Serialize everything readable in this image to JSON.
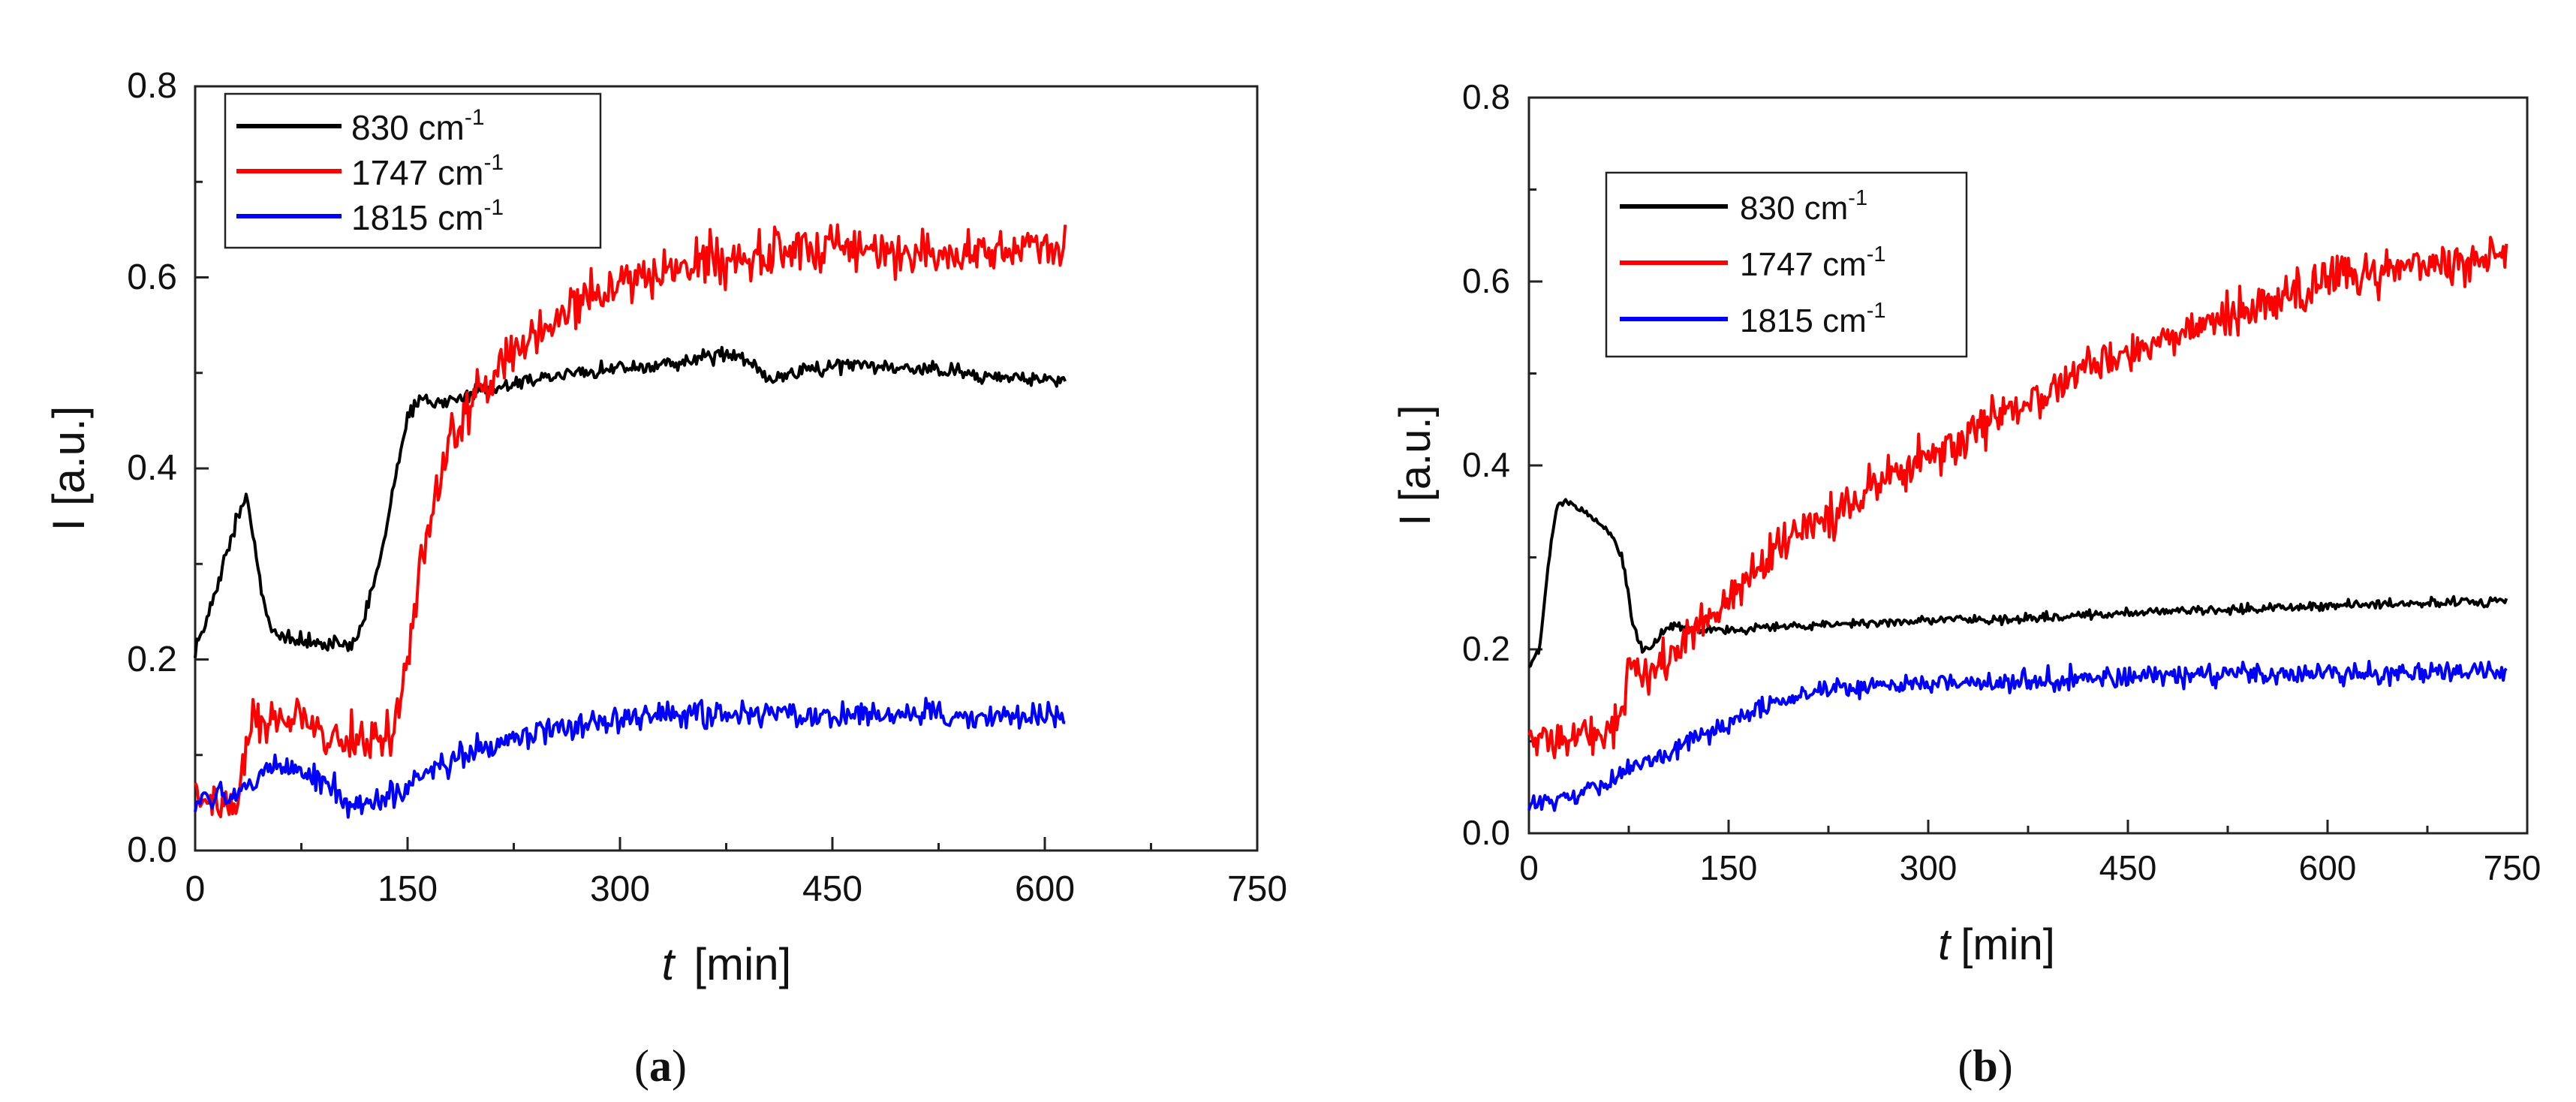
{
  "chart_data": [
    {
      "type": "line",
      "panel_label": {
        "open": "(",
        "letter": "a",
        "close": ")"
      },
      "xlabel": {
        "symbol": "t",
        "unit": "[min]"
      },
      "ylabel": "I [a.u.]",
      "xlim": [
        0,
        750
      ],
      "ylim": [
        0,
        0.8
      ],
      "xticks": [
        0,
        150,
        300,
        450,
        600,
        750
      ],
      "xtick_labels": [
        "0",
        "150",
        "300",
        "450",
        "600",
        "750"
      ],
      "yticks": [
        0.0,
        0.2,
        0.4,
        0.6,
        0.8
      ],
      "ytick_labels": [
        "0.0",
        "0.2",
        "0.4",
        "0.6",
        "0.8"
      ],
      "legend_position": "top-left",
      "series": [
        {
          "name": "830 cm",
          "superscript": "-1",
          "color": "#000000",
          "noise": 0.005,
          "points": [
            [
              0,
              0.21
            ],
            [
              10,
              0.25
            ],
            [
              20,
              0.3
            ],
            [
              30,
              0.35
            ],
            [
              35,
              0.37
            ],
            [
              40,
              0.345
            ],
            [
              45,
              0.29
            ],
            [
              50,
              0.25
            ],
            [
              55,
              0.23
            ],
            [
              65,
              0.222
            ],
            [
              80,
              0.22
            ],
            [
              100,
              0.218
            ],
            [
              110,
              0.215
            ],
            [
              115,
              0.22
            ],
            [
              125,
              0.27
            ],
            [
              135,
              0.34
            ],
            [
              145,
              0.42
            ],
            [
              152,
              0.46
            ],
            [
              160,
              0.472
            ],
            [
              180,
              0.47
            ],
            [
              200,
              0.48
            ],
            [
              230,
              0.49
            ],
            [
              260,
              0.5
            ],
            [
              300,
              0.505
            ],
            [
              340,
              0.51
            ],
            [
              380,
              0.52
            ],
            [
              395,
              0.51
            ],
            [
              405,
              0.49
            ],
            [
              420,
              0.5
            ],
            [
              460,
              0.51
            ],
            [
              500,
              0.505
            ],
            [
              550,
              0.5
            ],
            [
              600,
              0.493
            ],
            [
              615,
              0.49
            ]
          ]
        },
        {
          "name": "1747 cm",
          "superscript": "-1",
          "color": "#ff0000",
          "noise": 0.016,
          "points": [
            [
              0,
              0.05
            ],
            [
              15,
              0.045
            ],
            [
              30,
              0.048
            ],
            [
              35,
              0.09
            ],
            [
              40,
              0.135
            ],
            [
              60,
              0.135
            ],
            [
              80,
              0.135
            ],
            [
              95,
              0.12
            ],
            [
              110,
              0.112
            ],
            [
              130,
              0.11
            ],
            [
              140,
              0.13
            ],
            [
              150,
              0.2
            ],
            [
              160,
              0.3
            ],
            [
              175,
              0.41
            ],
            [
              190,
              0.46
            ],
            [
              210,
              0.5
            ],
            [
              240,
              0.54
            ],
            [
              270,
              0.57
            ],
            [
              300,
              0.59
            ],
            [
              330,
              0.605
            ],
            [
              360,
              0.615
            ],
            [
              400,
              0.625
            ],
            [
              450,
              0.63
            ],
            [
              500,
              0.628
            ],
            [
              550,
              0.625
            ],
            [
              600,
              0.632
            ],
            [
              615,
              0.628
            ]
          ]
        },
        {
          "name": "1815 cm",
          "superscript": "-1",
          "color": "#0000ff",
          "noise": 0.009,
          "points": [
            [
              0,
              0.05
            ],
            [
              20,
              0.055
            ],
            [
              40,
              0.065
            ],
            [
              55,
              0.09
            ],
            [
              70,
              0.085
            ],
            [
              90,
              0.075
            ],
            [
              105,
              0.05
            ],
            [
              120,
              0.05
            ],
            [
              140,
              0.055
            ],
            [
              160,
              0.075
            ],
            [
              190,
              0.1
            ],
            [
              220,
              0.115
            ],
            [
              260,
              0.128
            ],
            [
              300,
              0.137
            ],
            [
              350,
              0.142
            ],
            [
              400,
              0.145
            ],
            [
              450,
              0.143
            ],
            [
              500,
              0.142
            ],
            [
              550,
              0.14
            ],
            [
              600,
              0.14
            ],
            [
              615,
              0.14
            ]
          ]
        }
      ]
    },
    {
      "type": "line",
      "panel_label": {
        "open": "(",
        "letter": "b",
        "close": ")"
      },
      "xlabel": {
        "symbol": "t",
        "unit": "[min]"
      },
      "ylabel": "I [a.u.]",
      "xlim": [
        0,
        750
      ],
      "ylim": [
        0,
        0.8
      ],
      "xticks": [
        0,
        150,
        300,
        450,
        600,
        750
      ],
      "xtick_labels": [
        "0",
        "150",
        "300",
        "450",
        "600",
        "750"
      ],
      "yticks": [
        0.0,
        0.2,
        0.4,
        0.6,
        0.8
      ],
      "ytick_labels": [
        "0.0",
        "0.2",
        "0.4",
        "0.6",
        "0.8"
      ],
      "legend_position": "top-left",
      "series": [
        {
          "name": "830 cm",
          "superscript": "-1",
          "color": "#000000",
          "noise": 0.003,
          "points": [
            [
              0,
              0.18
            ],
            [
              8,
              0.2
            ],
            [
              15,
              0.3
            ],
            [
              22,
              0.36
            ],
            [
              30,
              0.36
            ],
            [
              45,
              0.345
            ],
            [
              60,
              0.33
            ],
            [
              70,
              0.3
            ],
            [
              78,
              0.23
            ],
            [
              85,
              0.2
            ],
            [
              92,
              0.2
            ],
            [
              100,
              0.22
            ],
            [
              110,
              0.225
            ],
            [
              130,
              0.222
            ],
            [
              160,
              0.222
            ],
            [
              200,
              0.225
            ],
            [
              250,
              0.228
            ],
            [
              300,
              0.232
            ],
            [
              350,
              0.232
            ],
            [
              400,
              0.236
            ],
            [
              450,
              0.24
            ],
            [
              500,
              0.242
            ],
            [
              550,
              0.244
            ],
            [
              600,
              0.248
            ],
            [
              650,
              0.25
            ],
            [
              700,
              0.252
            ],
            [
              735,
              0.252
            ]
          ]
        },
        {
          "name": "1747 cm",
          "superscript": "-1",
          "color": "#ff0000",
          "noise": 0.015,
          "points": [
            [
              0,
              0.1
            ],
            [
              20,
              0.1
            ],
            [
              40,
              0.105
            ],
            [
              60,
              0.115
            ],
            [
              70,
              0.135
            ],
            [
              75,
              0.18
            ],
            [
              80,
              0.19
            ],
            [
              90,
              0.17
            ],
            [
              100,
              0.18
            ],
            [
              110,
              0.2
            ],
            [
              130,
              0.23
            ],
            [
              150,
              0.26
            ],
            [
              175,
              0.29
            ],
            [
              200,
              0.32
            ],
            [
              230,
              0.35
            ],
            [
              260,
              0.38
            ],
            [
              300,
              0.41
            ],
            [
              340,
              0.44
            ],
            [
              380,
              0.47
            ],
            [
              420,
              0.5
            ],
            [
              460,
              0.53
            ],
            [
              500,
              0.55
            ],
            [
              550,
              0.575
            ],
            [
              600,
              0.6
            ],
            [
              650,
              0.615
            ],
            [
              700,
              0.625
            ],
            [
              735,
              0.63
            ]
          ]
        },
        {
          "name": "1815 cm",
          "superscript": "-1",
          "color": "#0000ff",
          "noise": 0.007,
          "points": [
            [
              0,
              0.035
            ],
            [
              20,
              0.035
            ],
            [
              45,
              0.045
            ],
            [
              65,
              0.06
            ],
            [
              75,
              0.075
            ],
            [
              90,
              0.075
            ],
            [
              105,
              0.085
            ],
            [
              120,
              0.1
            ],
            [
              150,
              0.12
            ],
            [
              180,
              0.14
            ],
            [
              220,
              0.155
            ],
            [
              260,
              0.16
            ],
            [
              300,
              0.163
            ],
            [
              350,
              0.165
            ],
            [
              400,
              0.168
            ],
            [
              450,
              0.17
            ],
            [
              500,
              0.172
            ],
            [
              550,
              0.172
            ],
            [
              600,
              0.174
            ],
            [
              650,
              0.174
            ],
            [
              700,
              0.175
            ],
            [
              735,
              0.175
            ]
          ]
        }
      ]
    }
  ]
}
